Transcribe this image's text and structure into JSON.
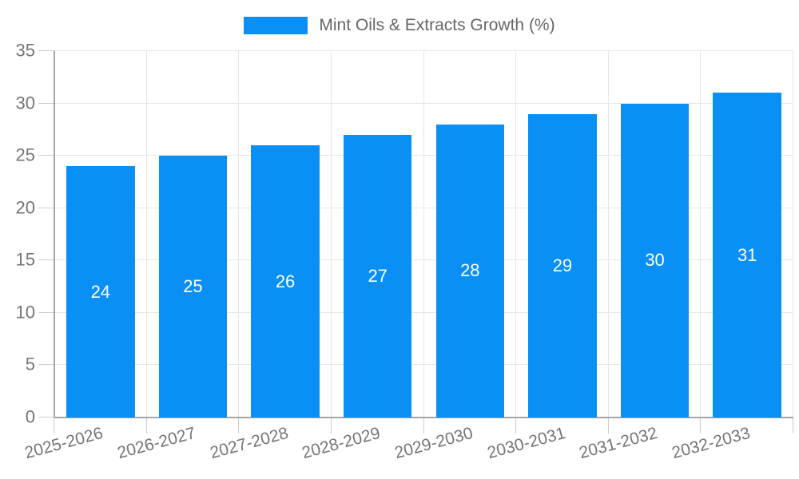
{
  "legend": {
    "label": "Mint Oils & Extracts Growth (%)"
  },
  "colors": {
    "bar": "#0a90f5",
    "grid": "#e6e6e6",
    "axis": "#a6a6a6",
    "tick": "#cccccc",
    "tick_label": "#757575",
    "legend_text": "#666666",
    "value_label": "#ffffff",
    "background": "#ffffff"
  },
  "chart_data": {
    "type": "bar",
    "title": "",
    "categories": [
      "2025-2026",
      "2026-2027",
      "2027-2028",
      "2028-2029",
      "2029-2030",
      "2030-2031",
      "2031-2032",
      "2032-2033"
    ],
    "values": [
      24,
      25,
      26,
      27,
      28,
      29,
      30,
      31
    ],
    "series": [
      {
        "name": "Mint Oils & Extracts Growth (%)",
        "values": [
          24,
          25,
          26,
          27,
          28,
          29,
          30,
          31
        ]
      }
    ],
    "xlabel": "",
    "ylabel": "",
    "ylim": [
      0,
      35
    ],
    "yticks": [
      0,
      5,
      10,
      15,
      20,
      25,
      30,
      35
    ],
    "grid": true,
    "legend_position": "top",
    "value_label_position": "inside-center"
  }
}
